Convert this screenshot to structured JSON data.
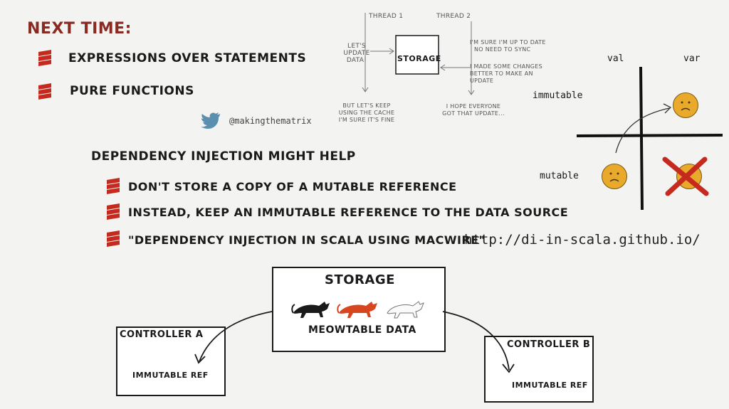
{
  "next_time": {
    "title": "NEXT TIME:",
    "items": [
      "EXPRESSIONS OVER STATEMENTS",
      "PURE FUNCTIONS"
    ]
  },
  "twitter": {
    "handle": "@makingthematrix",
    "icon": "twitter-bird-icon"
  },
  "threads": {
    "thread1": "THREAD 1",
    "thread2": "THREAD 2",
    "storage": "STORAGE",
    "lets_update": [
      "LET'S",
      "UPDATE",
      "DATA!"
    ],
    "keep_cache": [
      "BUT LET'S KEEP",
      "USING THE CACHE",
      "I'M SURE IT'S FINE"
    ],
    "up_to_date": [
      "I'M SURE I'M UP TO DATE",
      "NO NEED TO SYNC"
    ],
    "made_changes": [
      "I MADE SOME CHANGES",
      "BETTER TO MAKE AN UPDATE"
    ],
    "hope": [
      "I HOPE EVERYONE",
      "GOT THAT UPDATE..."
    ]
  },
  "matrix": {
    "val": "val",
    "var": "var",
    "immutable": "immutable",
    "mutable": "mutable"
  },
  "dependency": {
    "heading": "DEPENDENCY INJECTION MIGHT HELP",
    "items": [
      "DON'T STORE A COPY OF A MUTABLE REFERENCE",
      "INSTEAD, KEEP AN IMMUTABLE REFERENCE TO THE DATA SOURCE",
      "\"DEPENDENCY INJECTION IN SCALA USING MACWIRE\""
    ],
    "url": "http://di-in-scala.github.io/"
  },
  "diagram": {
    "storage_title": "STORAGE",
    "storage_data": "MEOWTABLE DATA",
    "controller_a": "CONTROLLER A",
    "controller_b": "CONTROLLER B",
    "ref_a": "IMMUTABLE REF",
    "ref_b": "IMMUTABLE REF"
  },
  "colors": {
    "accent_red": "#c62a1f",
    "title_red": "#8b2a22",
    "twitter_blue": "#5b8fb0",
    "smiley": "#e9a92b",
    "cat_orange": "#d8461f"
  }
}
